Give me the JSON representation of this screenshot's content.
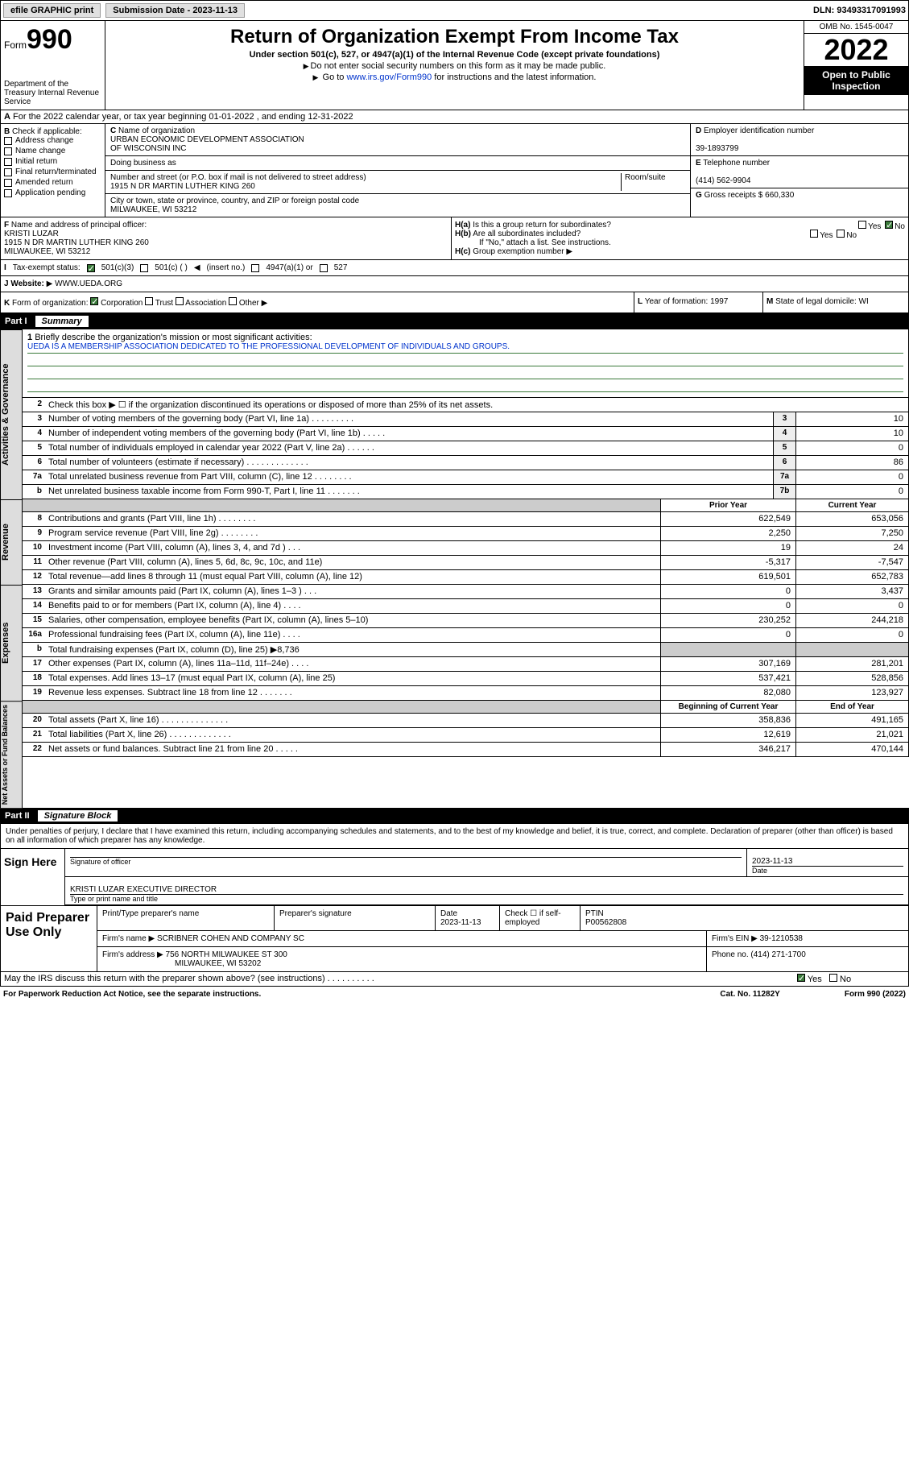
{
  "topbar": {
    "efile": "efile GRAPHIC print",
    "subdate_lbl": "Submission Date - 2023-11-13",
    "dln": "DLN: 93493317091993"
  },
  "header": {
    "form": "Form",
    "form_num": "990",
    "dept": "Department of the Treasury\nInternal Revenue Service",
    "title": "Return of Organization Exempt From Income Tax",
    "sub1": "Under section 501(c), 527, or 4947(a)(1) of the Internal Revenue Code (except private foundations)",
    "sub2": "Do not enter social security numbers on this form as it may be made public.",
    "sub3_pre": "Go to ",
    "sub3_link": "www.irs.gov/Form990",
    "sub3_post": " for instructions and the latest information.",
    "omb": "OMB No. 1545-0047",
    "year": "2022",
    "open": "Open to Public Inspection"
  },
  "row_a": "For the 2022 calendar year, or tax year beginning 01-01-2022    , and ending 12-31-2022",
  "col_b": {
    "hdr": "Check if applicable:",
    "items": [
      "Address change",
      "Name change",
      "Initial return",
      "Final return/terminated",
      "Amended return",
      "Application pending"
    ]
  },
  "col_c": {
    "name_lbl": "Name of organization",
    "name1": "URBAN ECONOMIC DEVELOPMENT ASSOCIATION",
    "name2": "OF WISCONSIN INC",
    "dba": "Doing business as",
    "addr_lbl": "Number and street (or P.O. box if mail is not delivered to street address)",
    "room_lbl": "Room/suite",
    "addr": "1915 N DR MARTIN LUTHER KING 260",
    "city_lbl": "City or town, state or province, country, and ZIP or foreign postal code",
    "city": "MILWAUKEE, WI  53212"
  },
  "col_d": {
    "ein_lbl": "Employer identification number",
    "ein": "39-1893799",
    "tel_lbl": "Telephone number",
    "tel": "(414) 562-9904",
    "gross_lbl": "Gross receipts $",
    "gross": "660,330"
  },
  "row_f": {
    "lbl": "Name and address of principal officer:",
    "name": "KRISTI LUZAR",
    "addr": "1915 N DR MARTIN LUTHER KING 260",
    "city": "MILWAUKEE, WI  53212"
  },
  "row_h": {
    "ha": "Is this a group return for subordinates?",
    "hb": "Are all subordinates included?",
    "hnote": "If \"No,\" attach a list. See instructions.",
    "hc": "Group exemption number"
  },
  "row_i": {
    "lbl": "Tax-exempt status:",
    "o1": "501(c)(3)",
    "o2": "501(c) (   )",
    "o2b": "(insert no.)",
    "o3": "4947(a)(1) or",
    "o4": "527"
  },
  "row_j": {
    "lbl": "Website:",
    "val": "WWW.UEDA.ORG"
  },
  "row_k": {
    "lbl": "Form of organization:",
    "opts": [
      "Corporation",
      "Trust",
      "Association",
      "Other"
    ],
    "yr_lbl": "Year of formation:",
    "yr": "1997",
    "st_lbl": "State of legal domicile:",
    "st": "WI"
  },
  "part1": {
    "name": "Part I",
    "title": "Summary",
    "l1_lbl": "Briefly describe the organization's mission or most significant activities:",
    "l1_text": "UEDA IS A MEMBERSHIP ASSOCIATION DEDICATED TO THE PROFESSIONAL DEVELOPMENT OF INDIVIDUALS AND GROUPS.",
    "l2": "Check this box ▶ ☐  if the organization discontinued its operations or disposed of more than 25% of its net assets.",
    "gov_lines": [
      {
        "n": "3",
        "d": "Number of voting members of the governing body (Part VI, line 1a)   .    .    .    .    .    .    .    .    .",
        "c": "3",
        "v": "10"
      },
      {
        "n": "4",
        "d": "Number of independent voting members of the governing body (Part VI, line 1b)    .    .    .    .    .",
        "c": "4",
        "v": "10"
      },
      {
        "n": "5",
        "d": "Total number of individuals employed in calendar year 2022 (Part V, line 2a)   .    .    .    .    .    .",
        "c": "5",
        "v": "0"
      },
      {
        "n": "6",
        "d": "Total number of volunteers (estimate if necessary)   .    .    .    .    .    .    .    .    .    .    .    .    .",
        "c": "6",
        "v": "86"
      },
      {
        "n": "7a",
        "d": "Total unrelated business revenue from Part VIII, column (C), line 12   .    .    .    .    .    .    .    .",
        "c": "7a",
        "v": "0"
      },
      {
        "n": "b",
        "d": "Net unrelated business taxable income from Form 990-T, Part I, line 11   .    .    .    .    .    .    .",
        "c": "7b",
        "v": "0"
      }
    ],
    "col_prior": "Prior Year",
    "col_curr": "Current Year",
    "rev_lines": [
      {
        "n": "8",
        "d": "Contributions and grants (Part VIII, line 1h)   .    .    .    .    .    .    .    .",
        "p": "622,549",
        "v": "653,056"
      },
      {
        "n": "9",
        "d": "Program service revenue (Part VIII, line 2g)   .    .    .    .    .    .    .    .",
        "p": "2,250",
        "v": "7,250"
      },
      {
        "n": "10",
        "d": "Investment income (Part VIII, column (A), lines 3, 4, and 7d )   .    .    .",
        "p": "19",
        "v": "24"
      },
      {
        "n": "11",
        "d": "Other revenue (Part VIII, column (A), lines 5, 6d, 8c, 9c, 10c, and 11e)",
        "p": "-5,317",
        "v": "-7,547"
      },
      {
        "n": "12",
        "d": "Total revenue—add lines 8 through 11 (must equal Part VIII, column (A), line 12)",
        "p": "619,501",
        "v": "652,783"
      }
    ],
    "exp_lines": [
      {
        "n": "13",
        "d": "Grants and similar amounts paid (Part IX, column (A), lines 1–3 )   .    .    .",
        "p": "0",
        "v": "3,437"
      },
      {
        "n": "14",
        "d": "Benefits paid to or for members (Part IX, column (A), line 4)   .    .    .    .",
        "p": "0",
        "v": "0"
      },
      {
        "n": "15",
        "d": "Salaries, other compensation, employee benefits (Part IX, column (A), lines 5–10)",
        "p": "230,252",
        "v": "244,218"
      },
      {
        "n": "16a",
        "d": "Professional fundraising fees (Part IX, column (A), line 11e)   .    .    .    .",
        "p": "0",
        "v": "0"
      },
      {
        "n": "b",
        "d": "Total fundraising expenses (Part IX, column (D), line 25) ▶8,736",
        "p": "",
        "v": ""
      },
      {
        "n": "17",
        "d": "Other expenses (Part IX, column (A), lines 11a–11d, 11f–24e)   .    .    .    .",
        "p": "307,169",
        "v": "281,201"
      },
      {
        "n": "18",
        "d": "Total expenses. Add lines 13–17 (must equal Part IX, column (A), line 25)",
        "p": "537,421",
        "v": "528,856"
      },
      {
        "n": "19",
        "d": "Revenue less expenses. Subtract line 18 from line 12   .    .    .    .    .    .    .",
        "p": "82,080",
        "v": "123,927"
      }
    ],
    "col_beg": "Beginning of Current Year",
    "col_end": "End of Year",
    "na_lines": [
      {
        "n": "20",
        "d": "Total assets (Part X, line 16)   .    .    .    .    .    .    .    .    .    .    .    .    .    .",
        "p": "358,836",
        "v": "491,165"
      },
      {
        "n": "21",
        "d": "Total liabilities (Part X, line 26)   .    .    .    .    .    .    .    .    .    .    .    .    .",
        "p": "12,619",
        "v": "21,021"
      },
      {
        "n": "22",
        "d": "Net assets or fund balances. Subtract line 21 from line 20   .    .    .    .    .",
        "p": "346,217",
        "v": "470,144"
      }
    ],
    "vlabels": [
      "Activities & Governance",
      "Revenue",
      "Expenses",
      "Net Assets or Fund Balances"
    ]
  },
  "part2": {
    "name": "Part II",
    "title": "Signature Block",
    "decl": "Under penalties of perjury, I declare that I have examined this return, including accompanying schedules and statements, and to the best of my knowledge and belief, it is true, correct, and complete. Declaration of preparer (other than officer) is based on all information of which preparer has any knowledge."
  },
  "sign": {
    "lbl": "Sign Here",
    "sig_lbl": "Signature of officer",
    "date_lbl": "Date",
    "date": "2023-11-13",
    "name": "KRISTI LUZAR  EXECUTIVE DIRECTOR",
    "name_lbl": "Type or print name and title"
  },
  "prep": {
    "lbl": "Paid Preparer Use Only",
    "c1": "Print/Type preparer's name",
    "c2": "Preparer's signature",
    "c3": "Date",
    "c3v": "2023-11-13",
    "c4": "Check ☐ if self-employed",
    "c5": "PTIN",
    "c5v": "P00562808",
    "firm_lbl": "Firm's name   ▶",
    "firm": "SCRIBNER COHEN AND COMPANY SC",
    "ein_lbl": "Firm's EIN ▶",
    "ein": "39-1210538",
    "addr_lbl": "Firm's address ▶",
    "addr": "756 NORTH MILWAUKEE ST 300",
    "addr2": "MILWAUKEE, WI  53202",
    "ph_lbl": "Phone no.",
    "ph": "(414) 271-1700"
  },
  "discuss": "May the IRS discuss this return with the preparer shown above? (see instructions)   .    .    .    .    .    .    .    .    .    .",
  "footer": {
    "l": "For Paperwork Reduction Act Notice, see the separate instructions.",
    "m": "Cat. No. 11282Y",
    "r": "Form 990 (2022)"
  }
}
